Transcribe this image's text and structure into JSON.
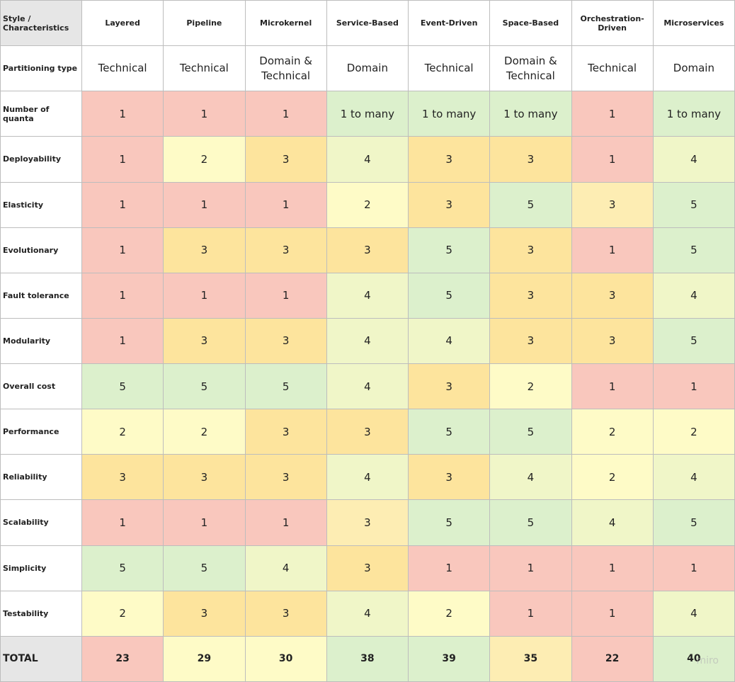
{
  "palette": {
    "R": "#f9c7bd",
    "Y": "#fefbc7",
    "O": "#fde49d",
    "LG": "#f0f6c8",
    "G": "#dcf0cc",
    "PO": "#fdedb3"
  },
  "corner": "Style / Characteristics",
  "columns": [
    "Layered",
    "Pipeline",
    "Microkernel",
    "Service-Based",
    "Event-Driven",
    "Space-Based",
    "Orchestration-Driven",
    "Microservices"
  ],
  "partitioning": {
    "label": "Partitioning type",
    "values": [
      "Technical",
      "Technical",
      "Domain & Technical",
      "Domain",
      "Technical",
      "Domain & Technical",
      "Technical",
      "Domain"
    ]
  },
  "rows": [
    {
      "label": "Number of quanta",
      "values": [
        "1",
        "1",
        "1",
        "1 to many",
        "1 to many",
        "1 to many",
        "1",
        "1 to many"
      ],
      "colors": [
        "R",
        "R",
        "R",
        "G",
        "G",
        "G",
        "R",
        "G"
      ]
    },
    {
      "label": "Deployability",
      "values": [
        "1",
        "2",
        "3",
        "4",
        "3",
        "3",
        "1",
        "4"
      ],
      "colors": [
        "R",
        "Y",
        "O",
        "LG",
        "O",
        "O",
        "R",
        "LG"
      ]
    },
    {
      "label": "Elasticity",
      "values": [
        "1",
        "1",
        "1",
        "2",
        "3",
        "5",
        "3",
        "5"
      ],
      "colors": [
        "R",
        "R",
        "R",
        "Y",
        "O",
        "G",
        "PO",
        "G"
      ]
    },
    {
      "label": "Evolutionary",
      "values": [
        "1",
        "3",
        "3",
        "3",
        "5",
        "3",
        "1",
        "5"
      ],
      "colors": [
        "R",
        "O",
        "O",
        "O",
        "G",
        "O",
        "R",
        "G"
      ]
    },
    {
      "label": "Fault tolerance",
      "values": [
        "1",
        "1",
        "1",
        "4",
        "5",
        "3",
        "3",
        "4"
      ],
      "colors": [
        "R",
        "R",
        "R",
        "LG",
        "G",
        "O",
        "O",
        "LG"
      ]
    },
    {
      "label": "Modularity",
      "values": [
        "1",
        "3",
        "3",
        "4",
        "4",
        "3",
        "3",
        "5"
      ],
      "colors": [
        "R",
        "O",
        "O",
        "LG",
        "LG",
        "O",
        "O",
        "G"
      ]
    },
    {
      "label": "Overall cost",
      "values": [
        "5",
        "5",
        "5",
        "4",
        "3",
        "2",
        "1",
        "1"
      ],
      "colors": [
        "G",
        "G",
        "G",
        "LG",
        "O",
        "Y",
        "R",
        "R"
      ]
    },
    {
      "label": "Performance",
      "values": [
        "2",
        "2",
        "3",
        "3",
        "5",
        "5",
        "2",
        "2"
      ],
      "colors": [
        "Y",
        "Y",
        "O",
        "O",
        "G",
        "G",
        "Y",
        "Y"
      ]
    },
    {
      "label": "Reliability",
      "values": [
        "3",
        "3",
        "3",
        "4",
        "3",
        "4",
        "2",
        "4"
      ],
      "colors": [
        "O",
        "O",
        "O",
        "LG",
        "O",
        "LG",
        "Y",
        "LG"
      ]
    },
    {
      "label": "Scalability",
      "values": [
        "1",
        "1",
        "1",
        "3",
        "5",
        "5",
        "4",
        "5"
      ],
      "colors": [
        "R",
        "R",
        "R",
        "PO",
        "G",
        "G",
        "LG",
        "G"
      ]
    },
    {
      "label": "Simplicity",
      "values": [
        "5",
        "5",
        "4",
        "3",
        "1",
        "1",
        "1",
        "1"
      ],
      "colors": [
        "G",
        "G",
        "LG",
        "O",
        "R",
        "R",
        "R",
        "R"
      ]
    },
    {
      "label": "Testability",
      "values": [
        "2",
        "3",
        "3",
        "4",
        "2",
        "1",
        "1",
        "4"
      ],
      "colors": [
        "Y",
        "O",
        "O",
        "LG",
        "Y",
        "R",
        "R",
        "LG"
      ]
    }
  ],
  "total": {
    "label": "TOTAL",
    "values": [
      "23",
      "29",
      "30",
      "38",
      "39",
      "35",
      "22",
      "40"
    ],
    "colors": [
      "R",
      "Y",
      "Y",
      "G",
      "G",
      "PO",
      "R",
      "G"
    ]
  },
  "watermark": "miro"
}
